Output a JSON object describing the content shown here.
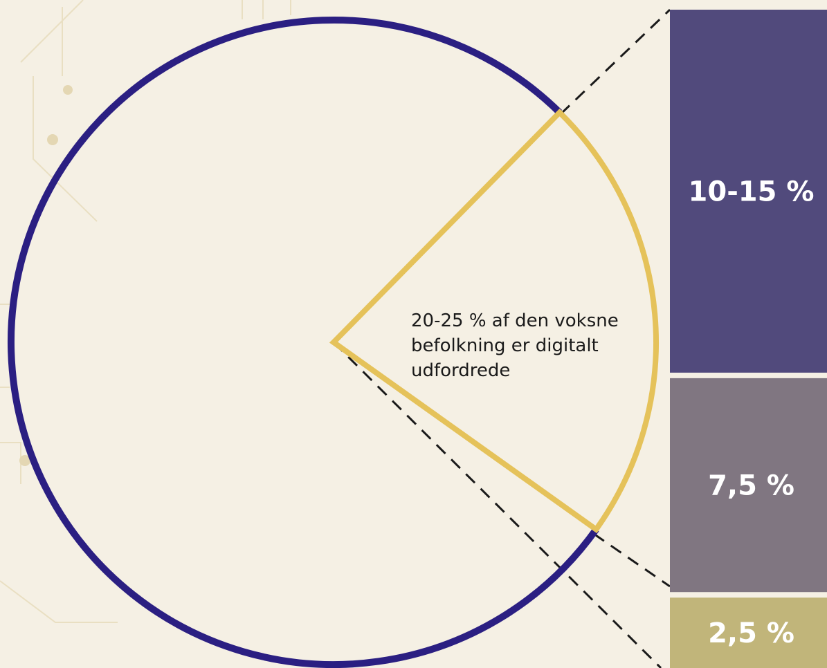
{
  "chart_data": {
    "type": "pie",
    "title": "",
    "pie": {
      "highlighted_slice": {
        "label": "20-25 % af den voksne befolkning er digitalt udfordrede",
        "label_lines": [
          "20-25 % af den voksne",
          "befolkning er digitalt",
          "udfordrede"
        ],
        "value_percent_range": [
          20,
          25
        ]
      }
    },
    "breakdown_bar": {
      "segments": [
        {
          "label": "10-15 %",
          "value_range": [
            10,
            15
          ]
        },
        {
          "label": "7,5 %",
          "value": 7.5
        },
        {
          "label": "2,5 %",
          "value": 2.5
        }
      ]
    }
  },
  "colors": {
    "background": "#f5f0e4",
    "pie_outline": "#2b1f82",
    "highlight_outline": "#e5c25a",
    "segment_1": "#514a7c",
    "segment_2": "#807681",
    "segment_3": "#c1b57a",
    "label_text": "#ffffff",
    "annotation_text": "#1a1a1a",
    "connector": "#1a1a1a"
  }
}
